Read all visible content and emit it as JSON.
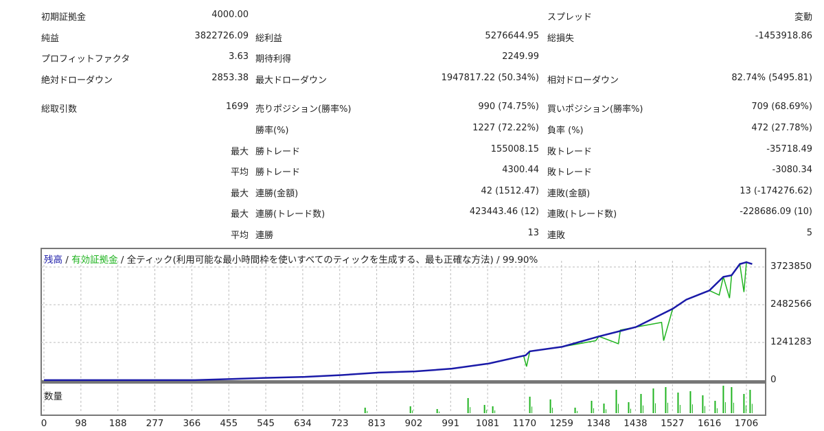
{
  "stats": {
    "rows": [
      [
        "初期証拠金",
        "4000.00",
        "",
        "",
        "スプレッド",
        "変動"
      ],
      [
        "純益",
        "3822726.09",
        "総利益",
        "5276644.95",
        "総損失",
        "-1453918.86"
      ],
      [
        "プロフィットファクタ",
        "3.63",
        "期待利得",
        "2249.99",
        "",
        ""
      ],
      [
        "絶対ドローダウン",
        "2853.38",
        "最大ドローダウン",
        "1947817.22 (50.34%)",
        "相対ドローダウン",
        "82.74% (5495.81)"
      ],
      [
        "総取引数",
        "1699",
        "売りポジション(勝率%)",
        "990 (74.75%)",
        "買いポジション(勝率%)",
        "709 (68.69%)"
      ],
      [
        "",
        "",
        "勝率(%)",
        "1227 (72.22%)",
        "負率 (%)",
        "472 (27.78%)"
      ],
      [
        "",
        "最大",
        "勝トレード",
        "155008.15",
        "敗トレード",
        "-35718.49"
      ],
      [
        "",
        "平均",
        "勝トレード",
        "4300.44",
        "敗トレード",
        "-3080.34"
      ],
      [
        "",
        "最大",
        "連勝(金額)",
        "42 (1512.47)",
        "連敗(金額)",
        "13 (-174276.62)"
      ],
      [
        "",
        "最大",
        "連勝(トレード数)",
        "423443.46 (12)",
        "連敗(トレード数)",
        "-228686.09 (10)"
      ],
      [
        "",
        "平均",
        "連勝",
        "13",
        "連敗",
        "5"
      ]
    ]
  },
  "legend": {
    "balance": "残高",
    "sep1": " / ",
    "equity": "有効証拠金",
    "sep2": " / ",
    "model": "全ティック(利用可能な最小時間枠を使いすべてのティックを生成する、最も正確な方法)",
    "sep3": " / ",
    "quality": "99.90%"
  },
  "volume_label": "数量",
  "colors": {
    "balance": "#1a1aa8",
    "equity": "#1fb31f",
    "volume": "#1fb31f",
    "grid": "#bbbbbb",
    "frame": "#777777"
  },
  "chart_data": {
    "type": "line",
    "title": "",
    "xlabel": "",
    "ylabel": "",
    "ylim": [
      0,
      3723850
    ],
    "xlim": [
      0,
      1706
    ],
    "y_ticks": [
      "0",
      "1241283",
      "2482566",
      "3723850"
    ],
    "x_ticks": [
      "0",
      "98",
      "188",
      "277",
      "366",
      "455",
      "545",
      "634",
      "723",
      "813",
      "902",
      "991",
      "1081",
      "1170",
      "1259",
      "1348",
      "1438",
      "1527",
      "1616",
      "1706"
    ],
    "series": [
      {
        "name": "残高",
        "x": [
          0,
          366,
          455,
          545,
          634,
          723,
          813,
          902,
          991,
          1081,
          1170,
          1180,
          1259,
          1348,
          1438,
          1527,
          1560,
          1616,
          1650,
          1670,
          1690,
          1706,
          1720
        ],
        "y": [
          4000,
          4000,
          40000,
          80000,
          110000,
          170000,
          250000,
          290000,
          380000,
          550000,
          820000,
          950000,
          1100000,
          1440000,
          1750000,
          2350000,
          2650000,
          2950000,
          3400000,
          3450000,
          3820000,
          3880000,
          3820000
        ]
      },
      {
        "name": "有効証拠金",
        "x": [
          0,
          366,
          455,
          545,
          634,
          723,
          813,
          902,
          991,
          1081,
          1165,
          1172,
          1180,
          1259,
          1340,
          1348,
          1395,
          1400,
          1438,
          1500,
          1505,
          1527,
          1560,
          1616,
          1640,
          1650,
          1665,
          1670,
          1690,
          1700,
          1706,
          1720
        ],
        "y": [
          4000,
          4000,
          40000,
          80000,
          110000,
          170000,
          250000,
          290000,
          380000,
          550000,
          800000,
          450000,
          950000,
          1100000,
          1300000,
          1440000,
          1200000,
          1650000,
          1750000,
          1900000,
          1300000,
          2350000,
          2650000,
          2950000,
          2800000,
          3400000,
          2700000,
          3450000,
          3820000,
          2900000,
          3880000,
          3820000
        ]
      }
    ],
    "volume": {
      "x": [
        780,
        890,
        955,
        1030,
        1070,
        1090,
        1180,
        1230,
        1290,
        1330,
        1360,
        1390,
        1420,
        1450,
        1480,
        1510,
        1540,
        1570,
        1600,
        1630,
        1650,
        1670,
        1700,
        1715
      ],
      "y": [
        0.2,
        0.25,
        0.15,
        0.55,
        0.3,
        0.25,
        0.6,
        0.5,
        0.2,
        0.45,
        0.35,
        0.85,
        0.4,
        0.7,
        0.9,
        0.95,
        0.75,
        0.8,
        0.65,
        0.45,
        1.0,
        0.95,
        0.7,
        0.85
      ]
    }
  }
}
